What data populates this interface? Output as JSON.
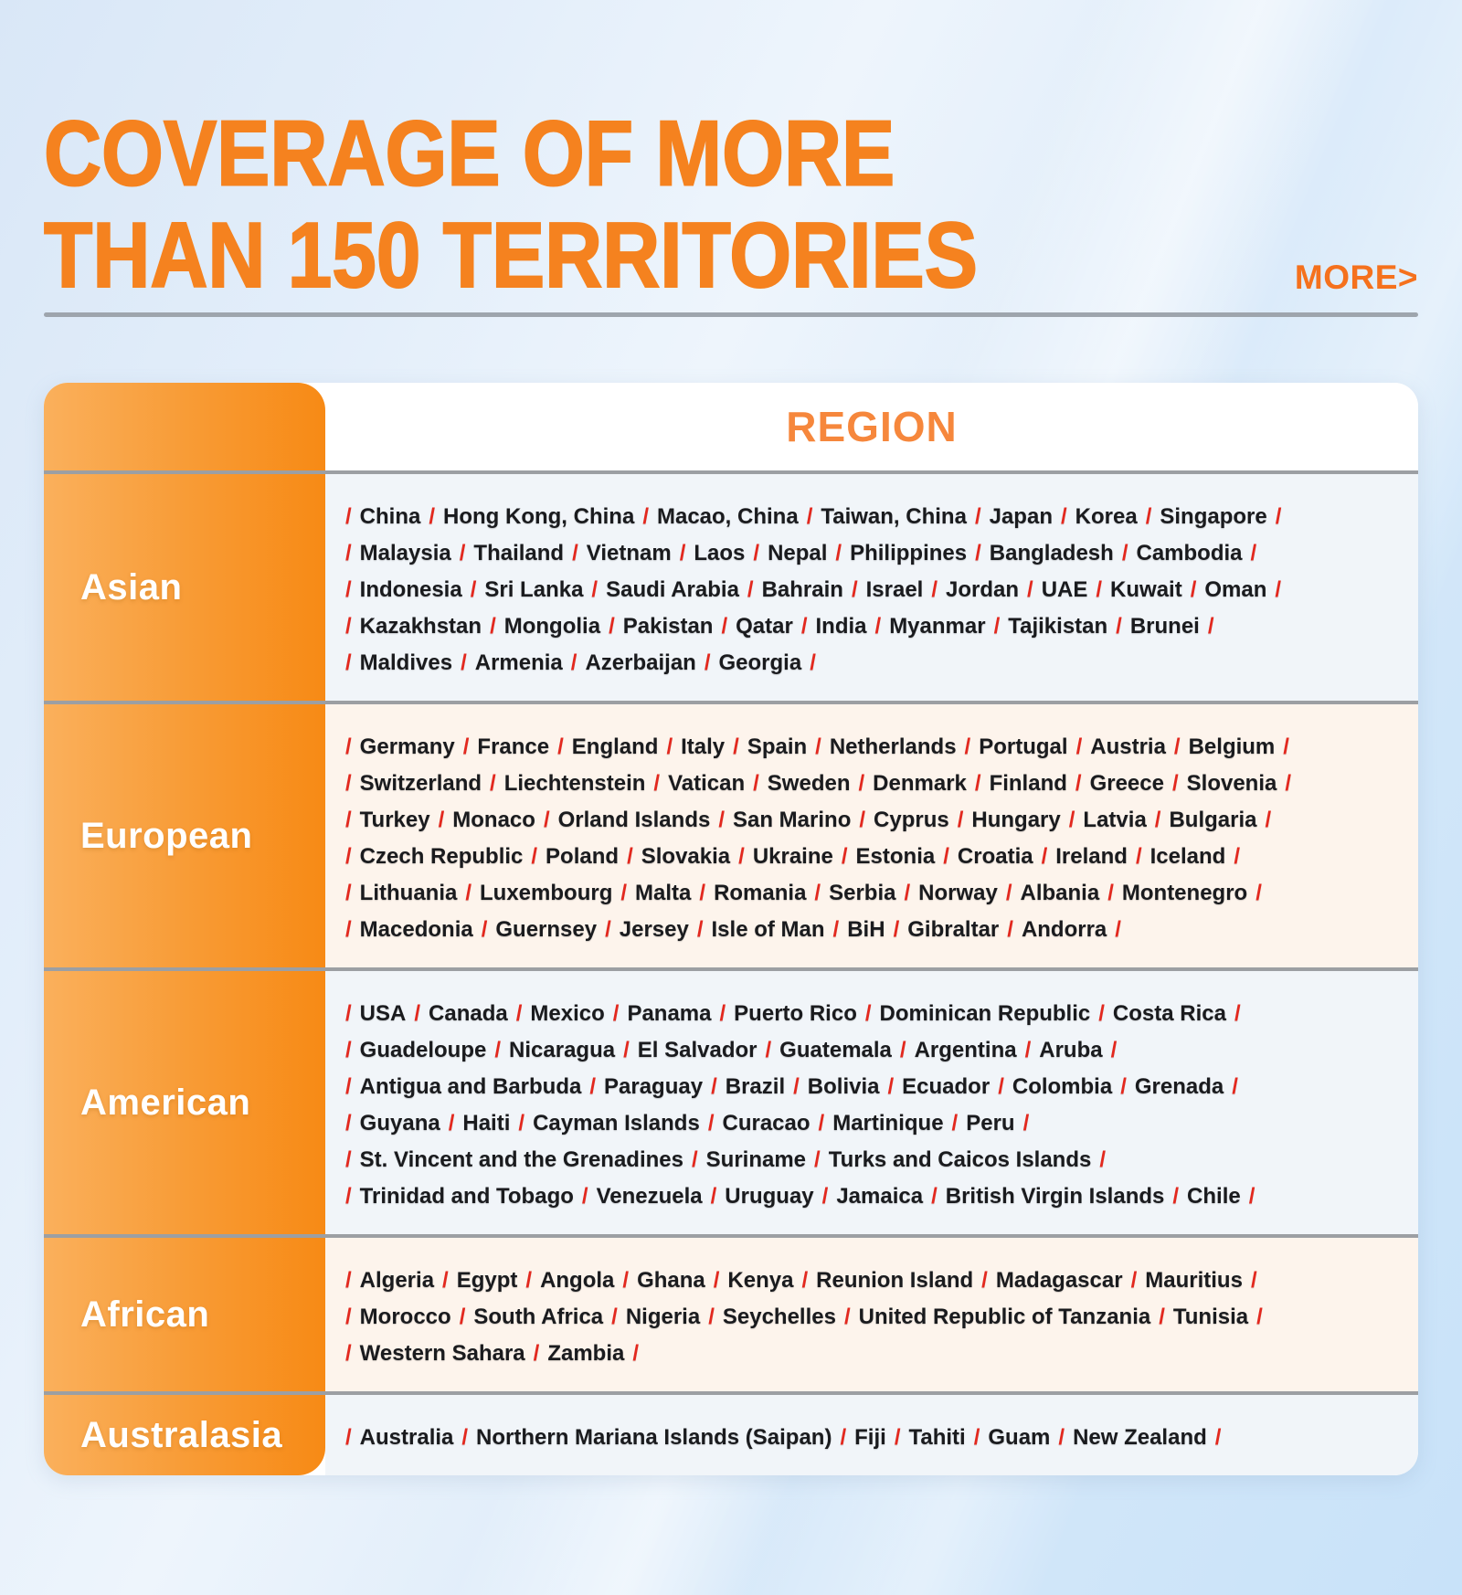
{
  "header": {
    "title_line1": "COVERAGE OF MORE",
    "title_line2": "THAN 150 TERRITORIES",
    "more_label": "MORE>"
  },
  "table": {
    "column_header": "REGION",
    "regions": [
      {
        "name": "Asian",
        "tone": "blue",
        "lines": [
          [
            "China",
            "Hong Kong, China",
            "Macao, China",
            "Taiwan, China",
            "Japan",
            "Korea",
            "Singapore"
          ],
          [
            "Malaysia",
            "Thailand",
            "Vietnam",
            "Laos",
            "Nepal",
            "Philippines",
            "Bangladesh",
            "Cambodia"
          ],
          [
            "Indonesia",
            "Sri Lanka",
            "Saudi Arabia",
            "Bahrain",
            "Israel",
            "Jordan",
            "UAE",
            "Kuwait",
            "Oman"
          ],
          [
            "Kazakhstan",
            "Mongolia",
            "Pakistan",
            "Qatar",
            "India",
            "Myanmar",
            "Tajikistan",
            "Brunei"
          ],
          [
            "Maldives",
            "Armenia",
            "Azerbaijan",
            "Georgia"
          ]
        ]
      },
      {
        "name": "European",
        "tone": "cream",
        "lines": [
          [
            "Germany",
            "France",
            "England",
            "Italy",
            "Spain",
            "Netherlands",
            "Portugal",
            "Austria",
            "Belgium"
          ],
          [
            "Switzerland",
            "Liechtenstein",
            "Vatican",
            "Sweden",
            "Denmark",
            "Finland",
            "Greece",
            "Slovenia"
          ],
          [
            "Turkey",
            "Monaco",
            "Orland Islands",
            "San Marino",
            "Cyprus",
            "Hungary",
            "Latvia",
            "Bulgaria"
          ],
          [
            "Czech Republic",
            "Poland",
            "Slovakia",
            "Ukraine",
            "Estonia",
            "Croatia",
            "Ireland",
            "Iceland"
          ],
          [
            "Lithuania",
            "Luxembourg",
            "Malta",
            "Romania",
            "Serbia",
            "Norway",
            "Albania",
            "Montenegro"
          ],
          [
            "Macedonia",
            "Guernsey",
            "Jersey",
            "Isle of Man",
            "BiH",
            "Gibraltar",
            "Andorra"
          ]
        ]
      },
      {
        "name": "American",
        "tone": "blue",
        "lines": [
          [
            "USA",
            "Canada",
            "Mexico",
            "Panama",
            "Puerto Rico",
            "Dominican Republic",
            "Costa Rica"
          ],
          [
            "Guadeloupe",
            "Nicaragua",
            "El Salvador",
            "Guatemala",
            "Argentina",
            "Aruba"
          ],
          [
            "Antigua and Barbuda",
            "Paraguay",
            "Brazil",
            "Bolivia",
            "Ecuador",
            "Colombia",
            "Grenada"
          ],
          [
            "Guyana",
            "Haiti",
            "Cayman Islands",
            "Curacao",
            "Martinique",
            "Peru"
          ],
          [
            "St. Vincent and the Grenadines",
            "Suriname",
            "Turks and Caicos Islands"
          ],
          [
            "Trinidad and Tobago",
            "Venezuela",
            "Uruguay",
            "Jamaica",
            "British Virgin Islands",
            "Chile"
          ]
        ]
      },
      {
        "name": "African",
        "tone": "cream",
        "lines": [
          [
            "Algeria",
            "Egypt",
            "Angola",
            "Ghana",
            "Kenya",
            "Reunion Island",
            "Madagascar",
            "Mauritius"
          ],
          [
            "Morocco",
            "South Africa",
            "Nigeria",
            "Seychelles",
            "United Republic of Tanzania",
            "Tunisia"
          ],
          [
            "Western Sahara",
            "Zambia"
          ]
        ]
      },
      {
        "name": "Australasia",
        "tone": "blue",
        "lines": [
          [
            "Australia",
            "Northern Mariana Islands (Saipan)",
            "Fiji",
            "Tahiti",
            "Guam",
            "New Zealand"
          ]
        ]
      }
    ]
  },
  "colors": {
    "title_orange": "#F5821F",
    "region_header_orange": "#F6873C",
    "column_gradient_start": "#FAB05C",
    "column_gradient_end": "#F78A15",
    "slash_red": "#E3281E",
    "country_text": "#1A1B1E",
    "row_tone_blue": "#F1F5F9",
    "row_tone_cream": "#FDF4EC",
    "divider_gray": "#60646A"
  }
}
